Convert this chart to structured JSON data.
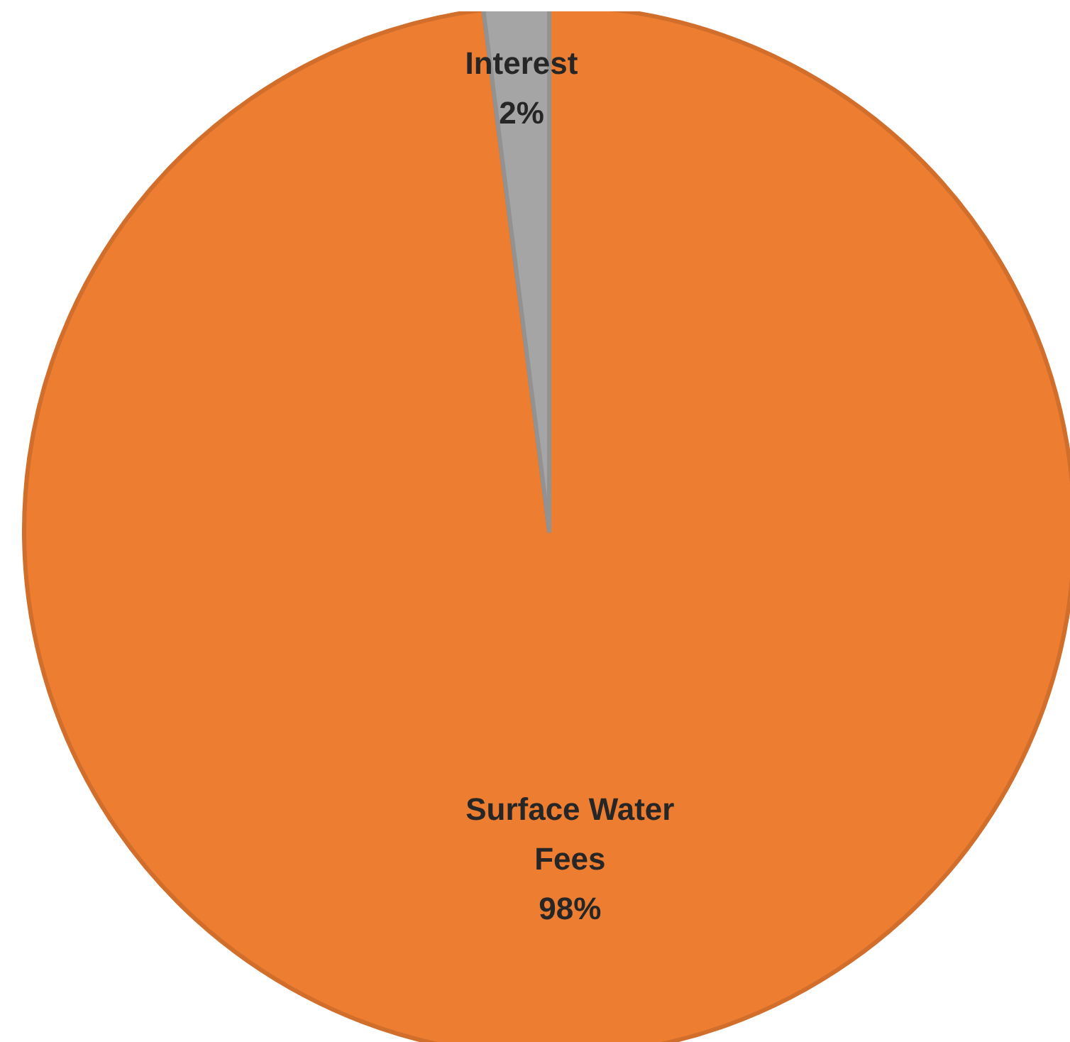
{
  "chart_data": {
    "type": "pie",
    "categories": [
      "Surface Water Fees",
      "Interest"
    ],
    "values": [
      98,
      2
    ],
    "colors": [
      "#ed7d31",
      "#a5a5a5"
    ],
    "value_labels": [
      "98%",
      "2%"
    ]
  }
}
